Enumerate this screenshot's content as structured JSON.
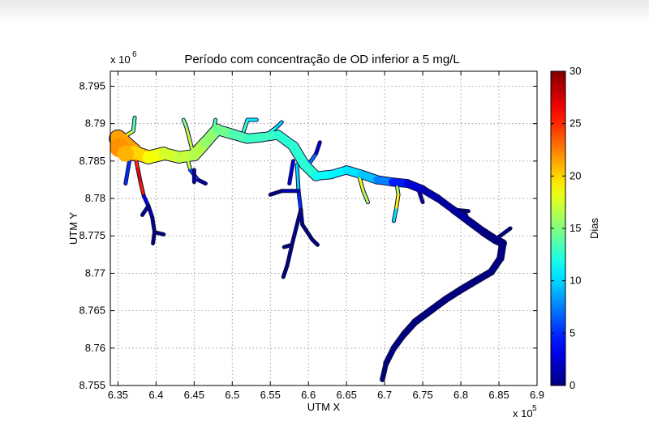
{
  "chart_data": {
    "type": "heatmap",
    "title": "Período com concentração de OD inferior a 5 mg/L",
    "xlabel": "UTM X",
    "ylabel": "UTM Y",
    "x_multiplier": "x 10",
    "x_exponent": "5",
    "y_multiplier": "x 10",
    "y_exponent": "6",
    "xlim": [
      6.34,
      6.9
    ],
    "ylim": [
      8.755,
      8.797
    ],
    "x_ticks": [
      6.35,
      6.4,
      6.45,
      6.5,
      6.55,
      6.6,
      6.65,
      6.7,
      6.75,
      6.8,
      6.85,
      6.9
    ],
    "x_tick_labels": [
      "6.35",
      "6.4",
      "6.45",
      "6.5",
      "6.55",
      "6.6",
      "6.65",
      "6.7",
      "6.75",
      "6.8",
      "6.85",
      "6.9"
    ],
    "y_ticks": [
      8.755,
      8.76,
      8.765,
      8.77,
      8.775,
      8.78,
      8.785,
      8.79,
      8.795
    ],
    "y_tick_labels": [
      "8.755",
      "8.76",
      "8.765",
      "8.77",
      "8.775",
      "8.78",
      "8.785",
      "8.79",
      "8.795"
    ],
    "grid": true,
    "colorbar": {
      "label": "Dias",
      "range": [
        0,
        30
      ],
      "ticks": [
        0,
        5,
        10,
        15,
        20,
        25,
        30
      ],
      "tick_labels": [
        "0",
        "5",
        "10",
        "15",
        "20",
        "25",
        "30"
      ],
      "colormap": "jet"
    },
    "reservoir_path": [
      [
        6.35,
        8.788
      ],
      [
        6.37,
        8.7862
      ],
      [
        6.39,
        8.7855
      ],
      [
        6.41,
        8.786
      ],
      [
        6.43,
        8.7855
      ],
      [
        6.45,
        8.7858
      ],
      [
        6.465,
        8.7875
      ],
      [
        6.48,
        8.7892
      ],
      [
        6.5,
        8.7886
      ],
      [
        6.52,
        8.788
      ],
      [
        6.54,
        8.7882
      ],
      [
        6.56,
        8.7885
      ],
      [
        6.58,
        8.787
      ],
      [
        6.595,
        8.7845
      ],
      [
        6.61,
        8.783
      ],
      [
        6.63,
        8.7832
      ],
      [
        6.65,
        8.7838
      ],
      [
        6.67,
        8.7832
      ],
      [
        6.69,
        8.7825
      ],
      [
        6.71,
        8.7822
      ],
      [
        6.73,
        8.782
      ],
      [
        6.75,
        8.7812
      ],
      [
        6.77,
        8.78
      ],
      [
        6.79,
        8.7785
      ],
      [
        6.81,
        8.777
      ],
      [
        6.83,
        8.7755
      ],
      [
        6.845,
        8.7745
      ],
      [
        6.855,
        8.774
      ],
      [
        6.852,
        8.772
      ],
      [
        6.84,
        8.7702
      ],
      [
        6.82,
        8.769
      ],
      [
        6.8,
        8.7678
      ],
      [
        6.78,
        8.7665
      ],
      [
        6.76,
        8.765
      ],
      [
        6.74,
        8.7635
      ],
      [
        6.725,
        8.7618
      ],
      [
        6.712,
        8.76
      ],
      [
        6.702,
        8.758
      ],
      [
        6.697,
        8.7558
      ]
    ],
    "reservoir_days": [
      22,
      21,
      19,
      18,
      17,
      17,
      16,
      15,
      14,
      13,
      13,
      13,
      12,
      13,
      12,
      11,
      11,
      10,
      9,
      6,
      3,
      2,
      1,
      1,
      1,
      0,
      0,
      0,
      0,
      0,
      0,
      0,
      0,
      0,
      0,
      0,
      0,
      0,
      0
    ],
    "reservoir_width": [
      2.6,
      1.5,
      1.6,
      1.4,
      1.3,
      1.3,
      1.4,
      1.2,
      1.1,
      1.1,
      1.0,
      1.0,
      1.1,
      1.2,
      1.0,
      0.9,
      0.9,
      1.0,
      0.9,
      0.9,
      0.9,
      0.8,
      0.7,
      0.7,
      0.8,
      0.8,
      0.9,
      0.8,
      0.7,
      0.7,
      0.7,
      0.7,
      0.7,
      0.7,
      0.7,
      0.6,
      0.6,
      0.5,
      0.4
    ],
    "tributaries": [
      {
        "path": [
          [
            6.372,
            8.786
          ],
          [
            6.376,
            8.784
          ],
          [
            6.38,
            8.782
          ],
          [
            6.384,
            8.7803
          ]
        ],
        "days": [
          24,
          26,
          27,
          24
        ]
      },
      {
        "path": [
          [
            6.384,
            8.7803
          ],
          [
            6.39,
            8.779
          ],
          [
            6.395,
            8.7775
          ],
          [
            6.398,
            8.7755
          ]
        ],
        "days": [
          5,
          2,
          1,
          0
        ]
      },
      {
        "path": [
          [
            6.398,
            8.7755
          ],
          [
            6.396,
            8.774
          ]
        ],
        "days": [
          0,
          0
        ]
      },
      {
        "path": [
          [
            6.398,
            8.7755
          ],
          [
            6.41,
            8.7752
          ]
        ],
        "days": [
          0,
          0
        ]
      },
      {
        "path": [
          [
            6.39,
            8.779
          ],
          [
            6.382,
            8.7778
          ]
        ],
        "days": [
          1,
          0
        ]
      },
      {
        "path": [
          [
            6.365,
            8.785
          ],
          [
            6.36,
            8.782
          ]
        ],
        "days": [
          8,
          2
        ]
      },
      {
        "path": [
          [
            6.362,
            8.7885
          ],
          [
            6.37,
            8.789
          ],
          [
            6.372,
            8.7908
          ]
        ],
        "days": [
          20,
          16,
          12
        ]
      },
      {
        "path": [
          [
            6.44,
            8.7858
          ],
          [
            6.445,
            8.7838
          ],
          [
            6.455,
            8.7825
          ],
          [
            6.465,
            8.782
          ]
        ],
        "days": [
          24,
          10,
          2,
          0
        ]
      },
      {
        "path": [
          [
            6.45,
            8.7838
          ],
          [
            6.45,
            8.7822
          ]
        ],
        "days": [
          2,
          0
        ]
      },
      {
        "path": [
          [
            6.585,
            8.7845
          ],
          [
            6.587,
            8.781
          ],
          [
            6.59,
            8.7785
          ],
          [
            6.592,
            8.7765
          ]
        ],
        "days": [
          12,
          8,
          2,
          0
        ]
      },
      {
        "path": [
          [
            6.59,
            8.7785
          ],
          [
            6.58,
            8.7745
          ],
          [
            6.572,
            8.771
          ],
          [
            6.567,
            8.7695
          ]
        ],
        "days": [
          1,
          0,
          0,
          0
        ]
      },
      {
        "path": [
          [
            6.578,
            8.7738
          ],
          [
            6.568,
            8.7735
          ]
        ],
        "days": [
          0,
          0
        ]
      },
      {
        "path": [
          [
            6.587,
            8.781
          ],
          [
            6.565,
            8.781
          ],
          [
            6.55,
            8.7805
          ]
        ],
        "days": [
          3,
          0,
          0
        ]
      },
      {
        "path": [
          [
            6.592,
            8.7765
          ],
          [
            6.605,
            8.7745
          ],
          [
            6.612,
            8.7738
          ]
        ],
        "days": [
          0,
          0,
          0
        ]
      },
      {
        "path": [
          [
            6.58,
            8.785
          ],
          [
            6.575,
            8.782
          ]
        ],
        "days": [
          6,
          0
        ]
      },
      {
        "path": [
          [
            6.6,
            8.7845
          ],
          [
            6.61,
            8.786
          ],
          [
            6.615,
            8.7875
          ]
        ],
        "days": [
          10,
          4,
          1
        ]
      },
      {
        "path": [
          [
            6.665,
            8.7835
          ],
          [
            6.672,
            8.781
          ],
          [
            6.678,
            8.7795
          ]
        ],
        "days": [
          13,
          23,
          10
        ]
      },
      {
        "path": [
          [
            6.715,
            8.7825
          ],
          [
            6.718,
            8.7805
          ],
          [
            6.715,
            8.7785
          ],
          [
            6.712,
            8.777
          ]
        ],
        "days": [
          11,
          22,
          16,
          5
        ]
      },
      {
        "path": [
          [
            6.745,
            8.781
          ],
          [
            6.75,
            8.7795
          ]
        ],
        "days": [
          2,
          0
        ]
      },
      {
        "path": [
          [
            6.79,
            8.7785
          ],
          [
            6.81,
            8.7783
          ]
        ],
        "days": [
          0,
          0
        ]
      },
      {
        "path": [
          [
            6.845,
            8.7745
          ],
          [
            6.865,
            8.776
          ]
        ],
        "days": [
          0,
          0
        ]
      },
      {
        "path": [
          [
            6.81,
            8.777
          ],
          [
            6.805,
            8.7782
          ]
        ],
        "days": [
          0,
          0
        ]
      },
      {
        "path": [
          [
            6.45,
            8.7855
          ],
          [
            6.44,
            8.7895
          ],
          [
            6.436,
            8.7905
          ]
        ],
        "days": [
          18,
          16,
          14
        ]
      },
      {
        "path": [
          [
            6.475,
            8.789
          ],
          [
            6.478,
            8.7905
          ]
        ],
        "days": [
          15,
          12
        ]
      },
      {
        "path": [
          [
            6.515,
            8.789
          ],
          [
            6.52,
            8.7905
          ],
          [
            6.532,
            8.7905
          ]
        ],
        "days": [
          14,
          12,
          10
        ]
      },
      {
        "path": [
          [
            6.545,
            8.7885
          ],
          [
            6.558,
            8.7895
          ],
          [
            6.565,
            8.7902
          ]
        ],
        "days": [
          13,
          11,
          9
        ]
      }
    ]
  }
}
